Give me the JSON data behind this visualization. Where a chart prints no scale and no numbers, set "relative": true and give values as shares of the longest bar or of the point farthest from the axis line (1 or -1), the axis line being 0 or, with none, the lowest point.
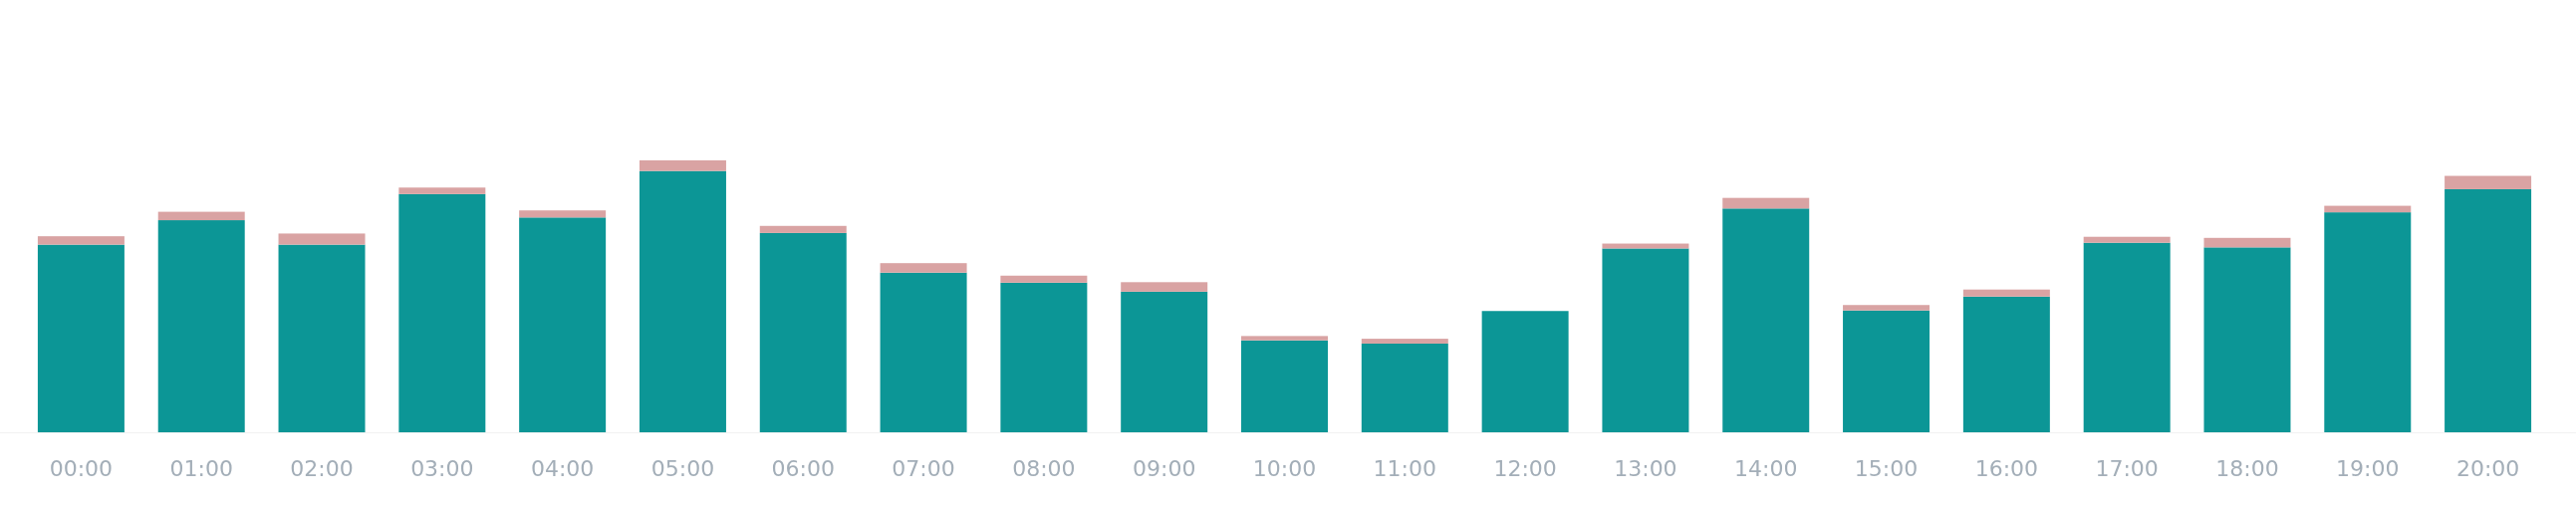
{
  "chart_data": {
    "type": "bar",
    "stacked": true,
    "relative": true,
    "categories": [
      "00:00",
      "01:00",
      "02:00",
      "03:00",
      "04:00",
      "05:00",
      "06:00",
      "07:00",
      "08:00",
      "09:00",
      "10:00",
      "11:00",
      "12:00",
      "13:00",
      "14:00",
      "15:00",
      "16:00",
      "17:00",
      "18:00",
      "19:00",
      "20:00"
    ],
    "series": [
      {
        "color": "#0c9696",
        "values": [
          0.69,
          0.78,
          0.69,
          0.876,
          0.79,
          0.961,
          0.733,
          0.587,
          0.55,
          0.517,
          0.338,
          0.326,
          0.446,
          0.676,
          0.823,
          0.448,
          0.499,
          0.697,
          0.68,
          0.809,
          0.894
        ]
      },
      {
        "color": "#d9a3a3",
        "values": [
          0.031,
          0.031,
          0.041,
          0.024,
          0.026,
          0.039,
          0.026,
          0.035,
          0.026,
          0.035,
          0.016,
          0.018,
          0,
          0.018,
          0.039,
          0.02,
          0.026,
          0.022,
          0.035,
          0.024,
          0.049
        ]
      }
    ]
  }
}
